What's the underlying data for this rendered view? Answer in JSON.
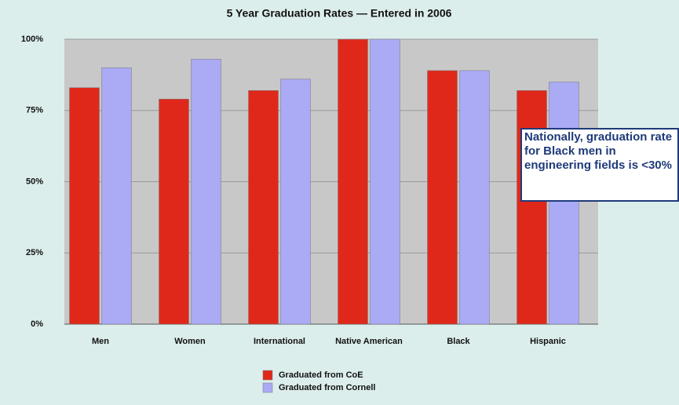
{
  "chart_data": {
    "type": "bar",
    "title": "5 Year Graduation Rates — Entered in 2006",
    "categories": [
      "Men",
      "Women",
      "International",
      "Native American",
      "Black",
      "Hispanic"
    ],
    "series": [
      {
        "name": "Graduated from CoE",
        "color": "#e0281a",
        "values": [
          83,
          79,
          82,
          100,
          89,
          82
        ]
      },
      {
        "name": "Graduated from Cornell",
        "color": "#aaaaf5",
        "values": [
          90,
          93,
          86,
          100,
          89,
          85
        ]
      }
    ],
    "ylim": [
      0,
      100
    ],
    "yticks": [
      {
        "value": 0,
        "label": "0%"
      },
      {
        "value": 25,
        "label": "25%"
      },
      {
        "value": 50,
        "label": "50%"
      },
      {
        "value": 75,
        "label": "75%"
      },
      {
        "value": 100,
        "label": "100%"
      }
    ],
    "grid": true,
    "annotation": "Nationally, graduation rate for Black men in engineering fields is <30%"
  }
}
